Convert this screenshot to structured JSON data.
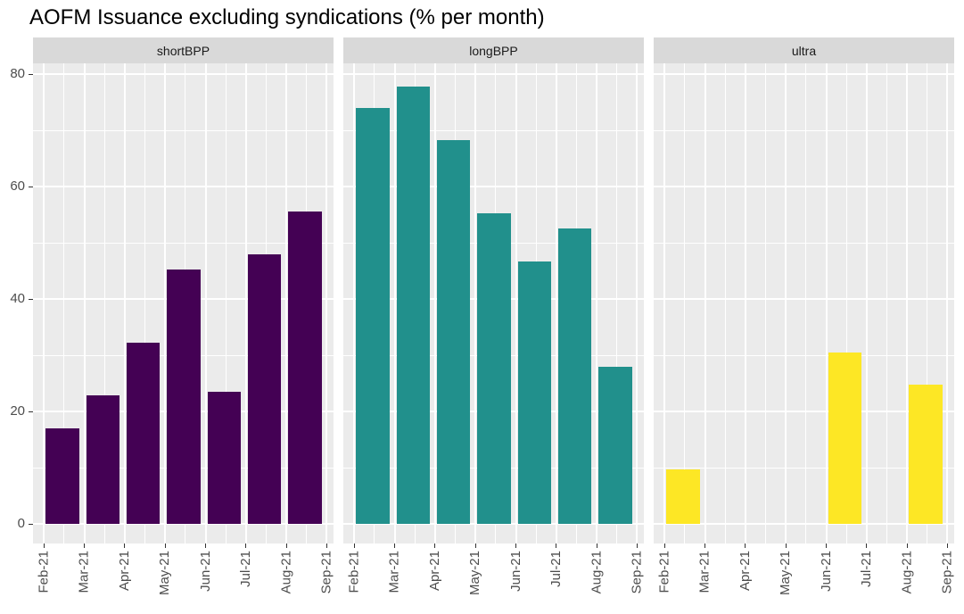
{
  "title": "AOFM Issuance excluding syndications (% per month)",
  "chart_data": {
    "type": "bar",
    "title": "AOFM Issuance excluding syndications (% per month)",
    "xlabel": "",
    "ylabel": "",
    "x_tick_labels": [
      "Feb-21",
      "Mar-21",
      "Apr-21",
      "May-21",
      "Jun-21",
      "Jul-21",
      "Aug-21",
      "Sep-21"
    ],
    "y_ticks": [
      0,
      20,
      40,
      60,
      80
    ],
    "y_minor_ticks": [
      10,
      30,
      50,
      70
    ],
    "ylim": [
      0,
      80
    ],
    "grid": "white major and minor gridlines on grey panel",
    "legend_position": "none",
    "panel_layout": "3 facet columns",
    "facets": [
      {
        "label": "shortBPP",
        "bar_color": "#440154",
        "categories": [
          "Feb-21",
          "Mar-21",
          "Apr-21",
          "May-21",
          "Jun-21",
          "Jul-21",
          "Aug-21"
        ],
        "values": [
          17,
          22.8,
          32.3,
          45.2,
          23.5,
          47.9,
          55.5
        ]
      },
      {
        "label": "longBPP",
        "bar_color": "#21908C",
        "categories": [
          "Feb-21",
          "Mar-21",
          "Apr-21",
          "May-21",
          "Jun-21",
          "Jul-21",
          "Aug-21"
        ],
        "values": [
          74,
          77.8,
          68.3,
          55.2,
          46.7,
          52.6,
          28
        ]
      },
      {
        "label": "ultra",
        "bar_color": "#FDE725",
        "categories": [
          "Feb-21",
          "Mar-21",
          "Apr-21",
          "May-21",
          "Jun-21",
          "Jul-21",
          "Aug-21"
        ],
        "values": [
          9.7,
          null,
          null,
          null,
          30.5,
          null,
          24.7
        ]
      }
    ]
  },
  "colors": {
    "strip_bg": "#D9D9D9",
    "panel_bg": "#EBEBEB",
    "gridline": "#FFFFFF",
    "axis_text": "#4D4D4D",
    "tick_mark": "#333333",
    "title_text": "#000000",
    "strip_text": "#1A1A1A"
  }
}
